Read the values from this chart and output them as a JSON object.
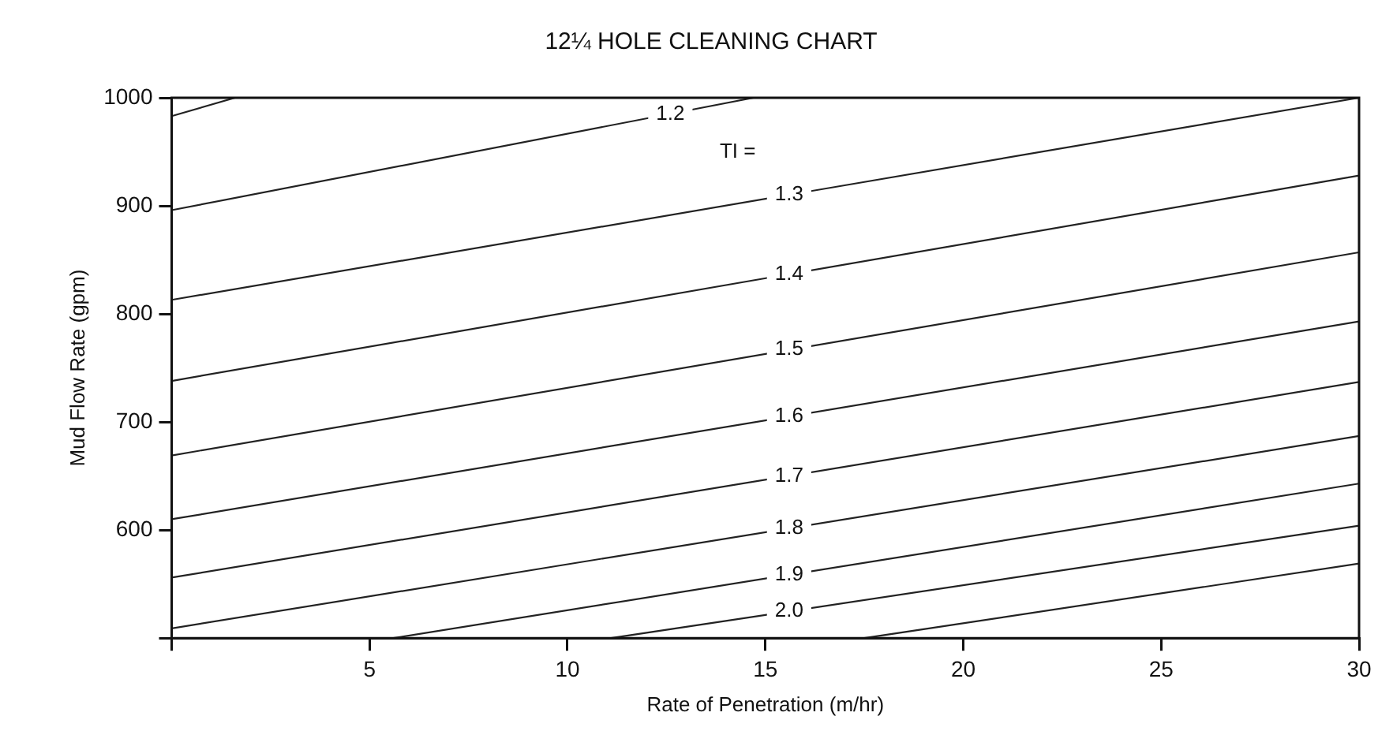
{
  "chart_data": {
    "type": "line",
    "title": "12¼ HOLE CLEANING CHART",
    "xlabel": "Rate of Penetration (m/hr)",
    "ylabel": "Mud Flow Rate (gpm)",
    "xlim": [
      0,
      30
    ],
    "xticks": [
      {
        "value": 0,
        "label": null
      },
      5,
      10,
      15,
      20,
      25,
      30
    ],
    "ylim": [
      500,
      1000
    ],
    "yticks": [
      {
        "value": 500,
        "label": null
      },
      600,
      700,
      800,
      900,
      1000
    ],
    "grid": false,
    "legend": false,
    "marker": "none",
    "line_style": "solid",
    "series": [
      {
        "color": "#222222",
        "x": [
          0,
          1.6
        ],
        "values": [
          983,
          1000
        ]
      },
      {
        "color": "#222222",
        "x": [
          0,
          14.7
        ],
        "values": [
          896,
          1000
        ]
      },
      {
        "color": "#222222",
        "x": [
          0,
          30
        ],
        "values": [
          813,
          1000
        ]
      },
      {
        "color": "#222222",
        "x": [
          0,
          30
        ],
        "values": [
          738,
          928
        ]
      },
      {
        "color": "#222222",
        "x": [
          0,
          30
        ],
        "values": [
          669,
          857
        ]
      },
      {
        "color": "#222222",
        "x": [
          0,
          30
        ],
        "values": [
          610,
          793
        ]
      },
      {
        "color": "#222222",
        "x": [
          0,
          30
        ],
        "values": [
          556,
          737
        ]
      },
      {
        "color": "#222222",
        "x": [
          0,
          30
        ],
        "values": [
          509,
          687
        ]
      },
      {
        "color": "#222222",
        "x": [
          5.6,
          30
        ],
        "values": [
          500,
          643
        ]
      },
      {
        "color": "#222222",
        "x": [
          11.1,
          30
        ],
        "values": [
          500,
          604
        ]
      },
      {
        "color": "#222222",
        "x": [
          17.5,
          30
        ],
        "values": [
          500,
          569
        ]
      }
    ],
    "annotations": [
      {
        "text": "1.2",
        "x": 12.6,
        "y": 985
      },
      {
        "text": "TI =",
        "x": 14.3,
        "y": 950
      },
      {
        "text": "1.3",
        "x": 15.6,
        "y": 910
      },
      {
        "text": "1.4",
        "x": 15.6,
        "y": 837
      },
      {
        "text": "1.5",
        "x": 15.6,
        "y": 767
      },
      {
        "text": "1.6",
        "x": 15.6,
        "y": 705
      },
      {
        "text": "1.7",
        "x": 15.6,
        "y": 650
      },
      {
        "text": "1.8",
        "x": 15.6,
        "y": 602
      },
      {
        "text": "1.9",
        "x": 15.6,
        "y": 559
      },
      {
        "text": "2.0",
        "x": 15.6,
        "y": 525
      }
    ]
  }
}
